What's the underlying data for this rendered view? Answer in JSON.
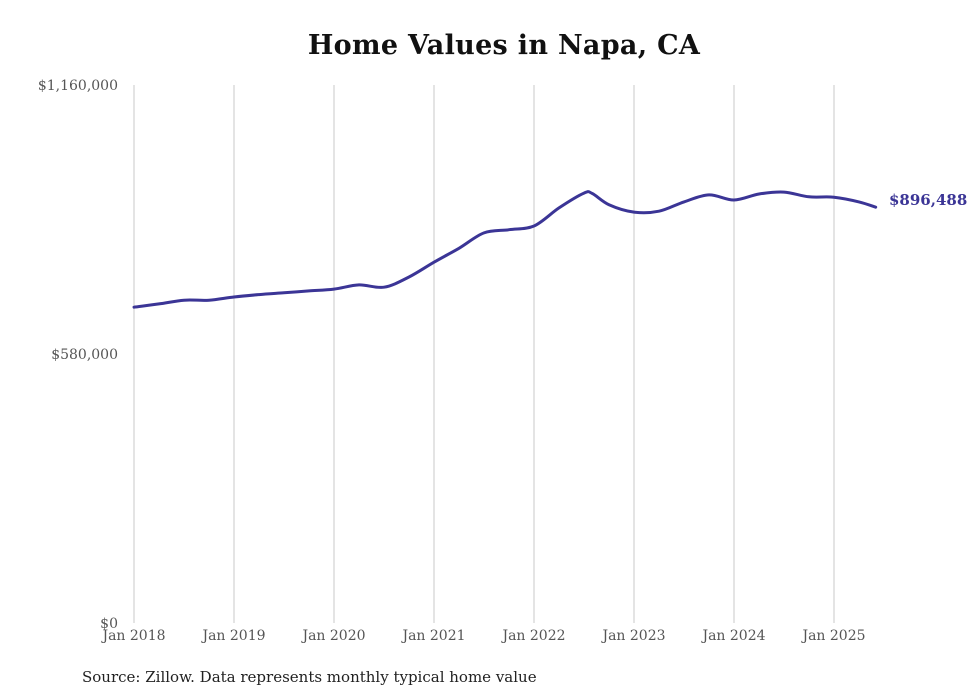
{
  "chart_data": {
    "type": "line",
    "title": "Home Values in Napa, CA",
    "xlabel": "",
    "ylabel": "",
    "ylim": [
      0,
      1160000
    ],
    "yticks": [
      {
        "value": 0,
        "label": "$0"
      },
      {
        "value": 580000,
        "label": "$580,000"
      },
      {
        "value": 1160000,
        "label": "$1,160,000"
      }
    ],
    "xticks": [
      {
        "month": 0,
        "label": "Jan 2018"
      },
      {
        "month": 12,
        "label": "Jan 2019"
      },
      {
        "month": 24,
        "label": "Jan 2020"
      },
      {
        "month": 36,
        "label": "Jan 2021"
      },
      {
        "month": 48,
        "label": "Jan 2022"
      },
      {
        "month": 60,
        "label": "Jan 2023"
      },
      {
        "month": 72,
        "label": "Jan 2024"
      },
      {
        "month": 84,
        "label": "Jan 2025"
      }
    ],
    "grid": "vertical",
    "series": [
      {
        "name": "Typical home value",
        "color": "#3b3596",
        "x": [
          0,
          3,
          6,
          9,
          12,
          15,
          18,
          21,
          24,
          27,
          30,
          33,
          36,
          39,
          42,
          45,
          48,
          51,
          54,
          55,
          57,
          60,
          63,
          66,
          69,
          72,
          75,
          78,
          81,
          84,
          87,
          89
        ],
        "values": [
          681000,
          688000,
          696000,
          696000,
          703000,
          708000,
          712000,
          716000,
          720000,
          729000,
          724000,
          746000,
          778000,
          808000,
          841000,
          848000,
          856000,
          895000,
          927000,
          926000,
          902000,
          886000,
          888000,
          908000,
          923000,
          912000,
          925000,
          929000,
          919000,
          918000,
          908000,
          896488
        ]
      }
    ],
    "end_label": "$896,488"
  },
  "source_note": "Source: Zillow. Data represents monthly typical home value"
}
